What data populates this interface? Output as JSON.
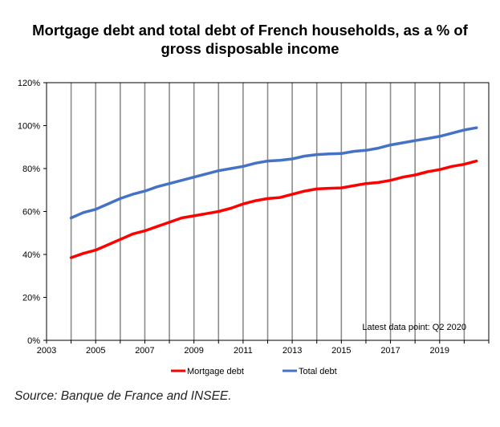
{
  "title_line1": "Mortgage debt and total debt of French households, as a % of",
  "title_line2": "gross disposable income",
  "source": "Source: Banque de France and INSEE.",
  "annotation": "Latest data point: Q2 2020",
  "chart_data": {
    "type": "line",
    "title": "Mortgage debt and total debt of French households, as a % of gross disposable income",
    "xlim": [
      2003,
      2021
    ],
    "ylim": [
      0,
      120
    ],
    "x_ticks": [
      "2003",
      "2005",
      "2007",
      "2009",
      "2011",
      "2013",
      "2015",
      "2017",
      "2019"
    ],
    "x_tick_values": [
      2003,
      2005,
      2007,
      2009,
      2011,
      2013,
      2015,
      2017,
      2019
    ],
    "y_ticks": [
      "0%",
      "20%",
      "40%",
      "60%",
      "80%",
      "100%",
      "120%"
    ],
    "y_tick_values": [
      0,
      20,
      40,
      60,
      80,
      100,
      120
    ],
    "grid": "vertical",
    "legend_position": "bottom",
    "series": [
      {
        "name": "Mortgage debt",
        "color": "#ff0000",
        "x": [
          2004.0,
          2004.5,
          2005.0,
          2005.5,
          2006.0,
          2006.5,
          2007.0,
          2007.5,
          2008.0,
          2008.5,
          2009.0,
          2009.5,
          2010.0,
          2010.5,
          2011.0,
          2011.5,
          2012.0,
          2012.5,
          2013.0,
          2013.5,
          2014.0,
          2014.5,
          2015.0,
          2015.5,
          2016.0,
          2016.5,
          2017.0,
          2017.5,
          2018.0,
          2018.5,
          2019.0,
          2019.5,
          2020.0,
          2020.5
        ],
        "y": [
          38.5,
          40.5,
          42.0,
          44.5,
          47.0,
          49.5,
          51.0,
          53.0,
          55.0,
          57.0,
          58.0,
          59.0,
          60.0,
          61.5,
          63.5,
          65.0,
          66.0,
          66.5,
          68.0,
          69.5,
          70.5,
          70.8,
          71.0,
          72.0,
          73.0,
          73.5,
          74.5,
          76.0,
          77.0,
          78.5,
          79.5,
          81.0,
          82.0,
          83.5
        ]
      },
      {
        "name": "Total debt",
        "color": "#4472c4",
        "x": [
          2004.0,
          2004.5,
          2005.0,
          2005.5,
          2006.0,
          2006.5,
          2007.0,
          2007.5,
          2008.0,
          2008.5,
          2009.0,
          2009.5,
          2010.0,
          2010.5,
          2011.0,
          2011.5,
          2012.0,
          2012.5,
          2013.0,
          2013.5,
          2014.0,
          2014.5,
          2015.0,
          2015.5,
          2016.0,
          2016.5,
          2017.0,
          2017.5,
          2018.0,
          2018.5,
          2019.0,
          2019.5,
          2020.0,
          2020.5
        ],
        "y": [
          57.0,
          59.5,
          61.0,
          63.5,
          66.0,
          68.0,
          69.5,
          71.5,
          73.0,
          74.5,
          76.0,
          77.5,
          79.0,
          80.0,
          81.0,
          82.5,
          83.5,
          83.8,
          84.5,
          85.8,
          86.5,
          86.8,
          87.0,
          88.0,
          88.5,
          89.5,
          91.0,
          92.0,
          93.0,
          94.0,
          95.0,
          96.5,
          98.0,
          99.0
        ]
      }
    ]
  }
}
